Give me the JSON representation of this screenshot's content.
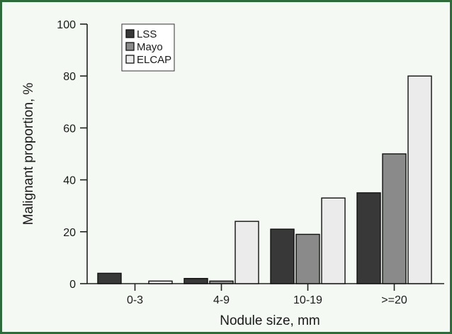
{
  "chart_data": {
    "type": "bar",
    "title": "",
    "xlabel": "Nodule size, mm",
    "ylabel": "Malignant proportion, %",
    "categories": [
      "0-3",
      "4-9",
      "10-19",
      ">=20"
    ],
    "ylim": [
      0,
      100
    ],
    "yticks": [
      "0",
      "20",
      "40",
      "60",
      "80",
      "100"
    ],
    "legend_position": "top-left",
    "grid": false,
    "series": [
      {
        "name": "LSS",
        "color": "#383838",
        "values": [
          4,
          2,
          21,
          35
        ]
      },
      {
        "name": "Mayo",
        "color": "#8a8a8a",
        "values": [
          0,
          1,
          19,
          50
        ]
      },
      {
        "name": "ELCAP",
        "color": "#ebebeb",
        "values": [
          1,
          24,
          33,
          80
        ]
      }
    ]
  }
}
